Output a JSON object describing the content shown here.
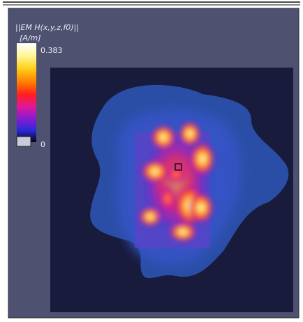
{
  "title": "||EM H(x,y,z,f0)||",
  "unit": "[A/m]",
  "colorbar": {
    "max": 0.383,
    "min": 0
  }
}
